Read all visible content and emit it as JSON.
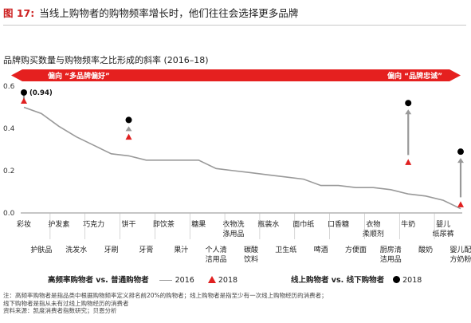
{
  "figure": {
    "label": "图 17:",
    "title": "当线上购物者的购物频率增长时，他们往往会选择更多品牌"
  },
  "chart_data": {
    "type": "line",
    "title": "品牌购买数量与购物频率之比形成的斜率 (2016–18)",
    "ylim": [
      0,
      0.6
    ],
    "yticks": [
      "0.0",
      "0.2",
      "0.4",
      "0.6"
    ],
    "categories": [
      "彩妆",
      "护肤品",
      "护发素",
      "洗发水",
      "巧克力",
      "牙刷",
      "饼干",
      "牙膏",
      "即饮茶",
      "果汁",
      "糖果",
      "个人清洁用品",
      "衣物洗涤用品",
      "碳酸饮料",
      "瓶装水",
      "卫生纸",
      "面巾纸",
      "啤酒",
      "口香糖",
      "方便面",
      "衣物柔顺剂",
      "厨房清洁用品",
      "牛奶",
      "酸奶",
      "婴儿纸尿裤",
      "婴儿配方奶粉"
    ],
    "label_rows": [
      "top",
      "bottom",
      "top",
      "bottom",
      "top",
      "bottom",
      "top",
      "bottom",
      "top",
      "bottom",
      "top",
      "bottom",
      "top",
      "bottom",
      "top",
      "bottom",
      "top",
      "bottom",
      "top",
      "bottom",
      "top",
      "bottom",
      "top",
      "bottom",
      "top",
      "bottom"
    ],
    "label_lines": [
      [
        "彩妆"
      ],
      [
        "护肤品"
      ],
      [
        "护发素"
      ],
      [
        "洗发水"
      ],
      [
        "巧克力"
      ],
      [
        "牙刷"
      ],
      [
        "饼干"
      ],
      [
        "牙膏"
      ],
      [
        "即饮茶"
      ],
      [
        "果汁"
      ],
      [
        "糖果"
      ],
      [
        "个人清",
        "洁用品"
      ],
      [
        "衣物洗",
        "涤用品"
      ],
      [
        "碳酸",
        "饮料"
      ],
      [
        "瓶装水"
      ],
      [
        "卫生纸"
      ],
      [
        "面巾纸"
      ],
      [
        "啤酒"
      ],
      [
        "口香糖"
      ],
      [
        "方便面"
      ],
      [
        "衣物",
        "柔顺剂"
      ],
      [
        "厨房清",
        "洁用品"
      ],
      [
        "牛奶"
      ],
      [
        "酸奶"
      ],
      [
        "婴儿",
        "纸尿裤"
      ],
      [
        "婴儿配",
        "方奶粉"
      ]
    ],
    "series": [
      {
        "name": "2016",
        "type": "line",
        "color": "#999999",
        "values": [
          0.5,
          0.47,
          0.41,
          0.36,
          0.32,
          0.28,
          0.27,
          0.25,
          0.25,
          0.25,
          0.25,
          0.21,
          0.2,
          0.19,
          0.18,
          0.17,
          0.16,
          0.13,
          0.13,
          0.12,
          0.12,
          0.11,
          0.09,
          0.08,
          0.06,
          0.02
        ]
      },
      {
        "name": "2018",
        "type": "marker",
        "shape": "triangle",
        "color": "#e02020",
        "points": [
          {
            "category": "彩妆",
            "value": 0.53
          },
          {
            "category": "饼干",
            "value": 0.36
          },
          {
            "category": "牛奶",
            "value": 0.24
          },
          {
            "category": "婴儿配方奶粉",
            "value": 0.04
          }
        ]
      },
      {
        "name": "2018",
        "type": "marker",
        "shape": "circle",
        "color": "#000000",
        "points": [
          {
            "category": "彩妆",
            "value": 0.57
          },
          {
            "category": "饼干",
            "value": 0.44
          },
          {
            "category": "牛奶",
            "value": 0.52
          },
          {
            "category": "婴儿配方奶粉",
            "value": 0.29
          }
        ]
      }
    ],
    "arrows": [
      "彩妆",
      "饼干",
      "牛奶",
      "婴儿配方奶粉"
    ],
    "annotations": [
      {
        "category": "彩妆",
        "text": "(0.94)"
      }
    ],
    "banner": {
      "left_text": "偏向 “多品牌偏好”",
      "right_text": "偏向 “品牌忠诚”",
      "color": "#e5201f"
    }
  },
  "legend": {
    "left_title": "高频率购物者 vs. 普通购物者",
    "left_line_label": "2016",
    "left_marker_label": "2018",
    "right_title": "线上购物者 vs. 线下购物者",
    "right_marker_label": "2018"
  },
  "notes": [
    "注：高频率购物者是指品类中根据购物频率定义排名前20%的购物者；线上购物者是指至少有一次线上购物经历的消费者；",
    "线下购物者是指从未有过线上购物经历的消费者",
    "资料来源：凯度消费者指数研究；贝恩分析"
  ]
}
